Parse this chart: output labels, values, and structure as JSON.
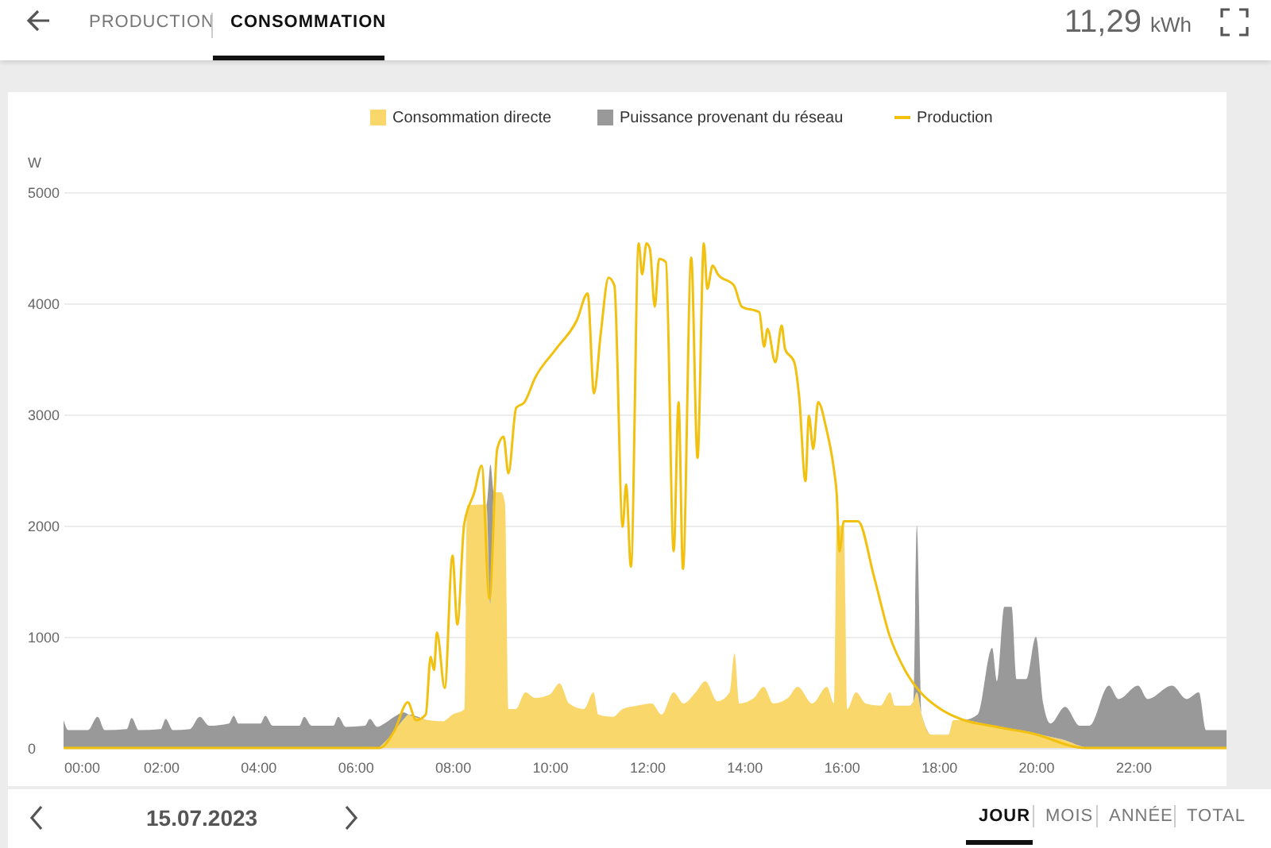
{
  "chart_data": {
    "type": "area",
    "stacked": true,
    "ylabel": "W",
    "legend": "top",
    "grid": "y",
    "annotations": [
      "PRODUCTION",
      "CONSOMMATION",
      "11,29 kWh",
      "15.07.2023",
      "JOUR",
      "MOIS",
      "ANNÉE",
      "TOTAL"
    ],
    "xlim": [
      0,
      23.92
    ],
    "ylim": [
      0,
      5000
    ],
    "xticks": [
      {
        "value": 0,
        "label": "00:00"
      },
      {
        "value": 2,
        "label": "02:00"
      },
      {
        "value": 4,
        "label": "04:00"
      },
      {
        "value": 6,
        "label": "06:00"
      },
      {
        "value": 8,
        "label": "08:00"
      },
      {
        "value": 10,
        "label": "10:00"
      },
      {
        "value": 12,
        "label": "12:00"
      },
      {
        "value": 14,
        "label": "14:00"
      },
      {
        "value": 16,
        "label": "16:00"
      },
      {
        "value": 18,
        "label": "18:00"
      },
      {
        "value": 20,
        "label": "20:00"
      },
      {
        "value": 22,
        "label": "22:00"
      }
    ],
    "yticks": [
      0,
      1000,
      2000,
      3000,
      4000,
      5000
    ],
    "x": [
      0,
      0.1,
      0.5,
      0.7,
      0.85,
      1.3,
      1.4,
      1.55,
      2.0,
      2.1,
      2.25,
      2.6,
      2.8,
      3.0,
      3.4,
      3.5,
      3.6,
      4.05,
      4.15,
      4.3,
      4.85,
      4.95,
      5.1,
      5.55,
      5.65,
      5.8,
      6.2,
      6.3,
      6.45,
      6.6,
      6.8,
      7.0,
      7.1,
      7.5,
      7.8,
      8.0,
      8.25,
      8.3,
      8.6,
      8.7,
      8.78,
      8.85,
      9.0,
      9.08,
      9.15,
      9.3,
      9.5,
      9.7,
      10.0,
      10.2,
      10.4,
      10.7,
      10.9,
      11.0,
      11.3,
      11.5,
      11.8,
      12.1,
      12.3,
      12.55,
      12.75,
      13.0,
      13.2,
      13.45,
      13.7,
      13.8,
      13.9,
      14.2,
      14.4,
      14.6,
      14.9,
      15.1,
      15.4,
      15.7,
      15.85,
      15.9,
      16.05,
      16.12,
      16.3,
      16.5,
      16.8,
      17.0,
      17.1,
      17.4,
      17.48,
      17.55,
      17.65,
      17.85,
      18.2,
      18.3,
      18.5,
      18.8,
      19.1,
      19.2,
      19.35,
      19.5,
      19.6,
      19.8,
      20.0,
      20.15,
      20.3,
      20.6,
      20.9,
      21.1,
      21.5,
      21.7,
      22.1,
      22.3,
      22.8,
      23.1,
      23.35,
      23.5,
      23.92
    ],
    "series": [
      {
        "name": "Consommation directe",
        "color": "#f9d76b",
        "values": [
          0,
          0,
          0,
          0,
          0,
          0,
          0,
          0,
          0,
          0,
          0,
          0,
          0,
          0,
          0,
          0,
          0,
          0,
          0,
          0,
          0,
          0,
          0,
          0,
          0,
          0,
          0,
          0,
          0,
          50,
          150,
          260,
          300,
          250,
          240,
          300,
          350,
          2180,
          2190,
          2190,
          1300,
          2300,
          2300,
          2200,
          350,
          350,
          500,
          450,
          480,
          580,
          400,
          350,
          500,
          300,
          280,
          350,
          380,
          400,
          300,
          500,
          400,
          500,
          600,
          420,
          500,
          850,
          400,
          450,
          550,
          400,
          450,
          550,
          400,
          550,
          400,
          2000,
          2000,
          350,
          500,
          400,
          380,
          500,
          380,
          380,
          420,
          500,
          300,
          120,
          120,
          250,
          250,
          230,
          200,
          195,
          185,
          170,
          165,
          150,
          130,
          115,
          100,
          70,
          20,
          0,
          0,
          0,
          0,
          0,
          0,
          0,
          0,
          0,
          0
        ]
      },
      {
        "name": "Puissance provenant du réseau",
        "color": "#999999",
        "values": [
          250,
          160,
          160,
          280,
          160,
          170,
          270,
          160,
          170,
          260,
          160,
          170,
          280,
          200,
          220,
          290,
          220,
          220,
          290,
          200,
          200,
          280,
          200,
          200,
          280,
          190,
          200,
          260,
          190,
          170,
          130,
          60,
          0,
          0,
          0,
          0,
          0,
          0,
          0,
          0,
          1250,
          0,
          0,
          0,
          0,
          0,
          0,
          0,
          0,
          0,
          0,
          0,
          0,
          0,
          0,
          0,
          0,
          0,
          0,
          0,
          0,
          0,
          0,
          0,
          0,
          0,
          0,
          0,
          0,
          0,
          0,
          0,
          0,
          0,
          0,
          0,
          0,
          0,
          0,
          0,
          0,
          0,
          0,
          0,
          0,
          1500,
          0,
          0,
          0,
          0,
          0,
          70,
          700,
          405,
          1085,
          1100,
          455,
          470,
          870,
          285,
          120,
          300,
          180,
          200,
          560,
          440,
          560,
          440,
          560,
          440,
          500,
          160,
          160
        ]
      },
      {
        "name": "Production",
        "type": "line",
        "color": "#f2c10f",
        "x": [
          0,
          6.5,
          6.8,
          7.08,
          7.25,
          7.45,
          7.55,
          7.62,
          7.68,
          7.84,
          8.0,
          8.1,
          8.24,
          8.45,
          8.6,
          8.76,
          8.92,
          9.05,
          9.15,
          9.31,
          9.48,
          9.7,
          10.13,
          10.56,
          10.78,
          10.91,
          11.05,
          11.21,
          11.33,
          11.5,
          11.57,
          11.67,
          11.83,
          11.9,
          11.99,
          12.06,
          12.16,
          12.25,
          12.39,
          12.55,
          12.65,
          12.74,
          12.91,
          13.04,
          13.17,
          13.24,
          13.35,
          13.46,
          13.79,
          13.95,
          14.31,
          14.41,
          14.48,
          14.64,
          14.77,
          14.84,
          15.03,
          15.13,
          15.26,
          15.33,
          15.42,
          15.52,
          15.69,
          15.85,
          15.9,
          15.96,
          16.05,
          16.34,
          16.67,
          16.99,
          17.32,
          17.65,
          17.97,
          18.52,
          19.06,
          19.93,
          21.02,
          23.92
        ],
        "values": [
          0,
          0,
          150,
          410,
          250,
          300,
          820,
          700,
          1040,
          540,
          1730,
          1110,
          2010,
          2300,
          2540,
          1340,
          2690,
          2800,
          2470,
          3060,
          3110,
          3330,
          3590,
          3850,
          4090,
          3190,
          3730,
          4230,
          4160,
          1990,
          2370,
          1630,
          4540,
          4260,
          4540,
          4490,
          3970,
          4400,
          4370,
          1770,
          3110,
          1610,
          4410,
          2610,
          4540,
          4130,
          4340,
          4260,
          4160,
          3970,
          3920,
          3610,
          3770,
          3470,
          3800,
          3590,
          3470,
          3160,
          2400,
          2990,
          2690,
          3110,
          2870,
          2490,
          2300,
          1770,
          2040,
          2040,
          1540,
          1010,
          690,
          490,
          370,
          250,
          200,
          130,
          0,
          0
        ]
      }
    ]
  }
}
